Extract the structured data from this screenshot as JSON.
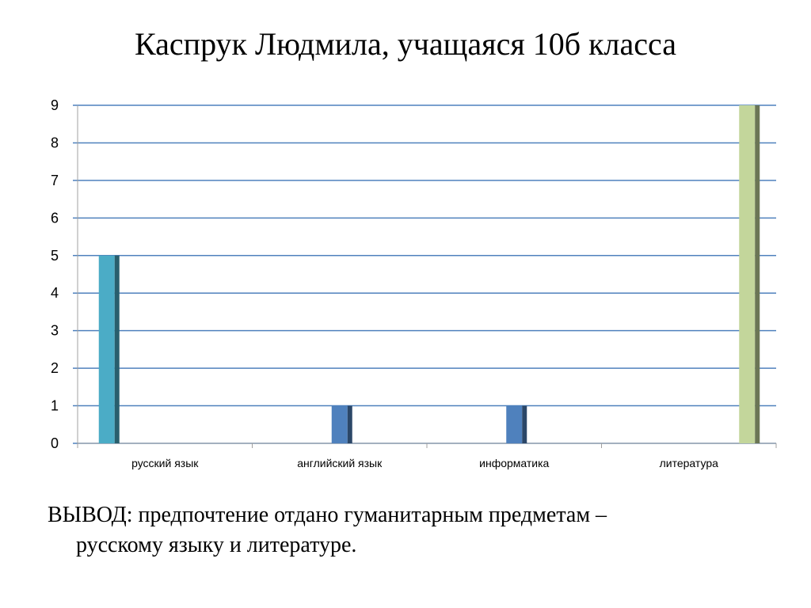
{
  "slide": {
    "title": "Каспрук Людмила, учащаяся 10б класса",
    "conclusion_line1": "ВЫВОД: предпочтение отдано гуманитарным предметам –",
    "conclusion_line2": "русскому языку и литературе."
  },
  "chart_data": {
    "type": "bar",
    "categories": [
      "русский язык",
      "английский язык",
      "информатика",
      "литература"
    ],
    "series": [
      {
        "values": [
          5,
          0,
          0,
          0
        ],
        "color": "#4bacc6"
      },
      {
        "values": [
          0,
          1,
          1,
          0
        ],
        "color": "#4f81bd"
      },
      {
        "values": [
          0,
          0,
          0,
          9
        ],
        "color": "#c3d69b"
      }
    ],
    "ylim": [
      0,
      9
    ],
    "yticks": [
      0,
      1,
      2,
      3,
      4,
      5,
      6,
      7,
      8,
      9
    ],
    "grid": true,
    "grid_color": "#4f81bd"
  }
}
